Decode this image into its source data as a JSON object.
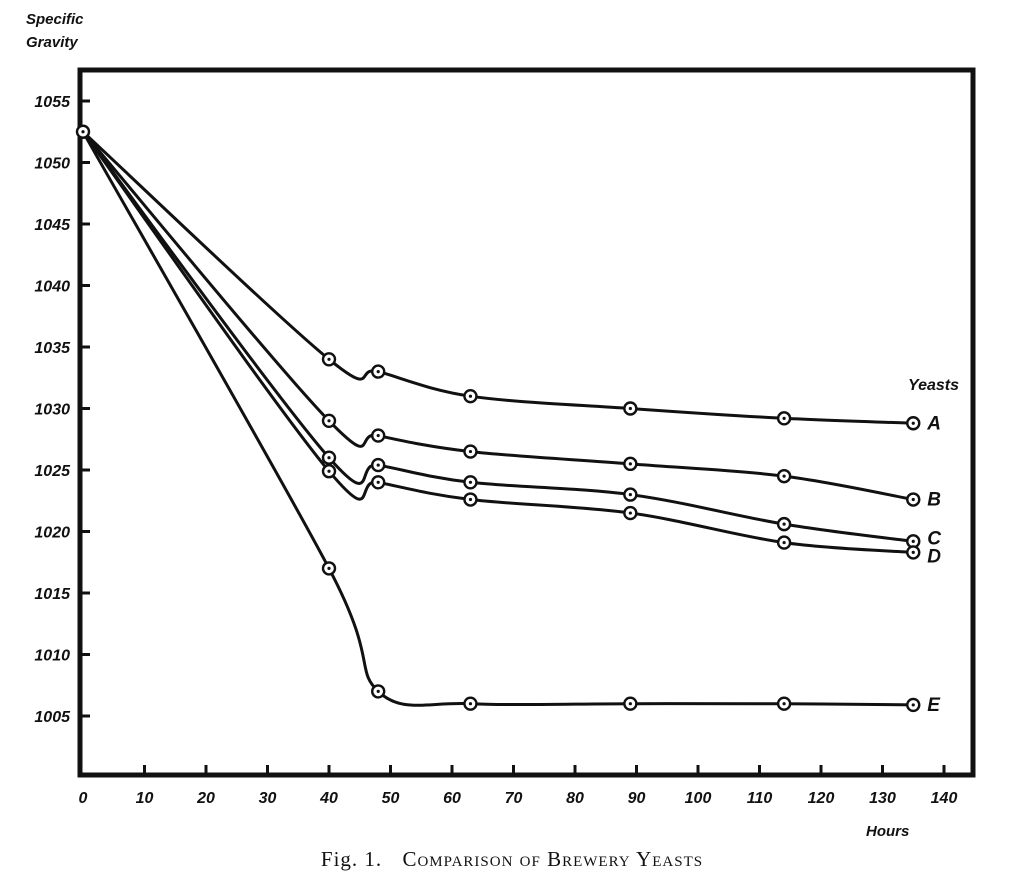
{
  "chart_data": {
    "type": "line",
    "title": "Fig. 1. Comparison of Brewery Yeasts",
    "xlabel": "Hours",
    "ylabel": "Specific Gravity",
    "ylabel_lines": [
      "Specific",
      "Gravity"
    ],
    "xlim": [
      0,
      145
    ],
    "ylim": [
      1000,
      1058
    ],
    "xticks": [
      0,
      10,
      20,
      30,
      40,
      50,
      60,
      70,
      80,
      90,
      100,
      110,
      120,
      130,
      140
    ],
    "yticks": [
      1005,
      1010,
      1015,
      1020,
      1025,
      1030,
      1035,
      1040,
      1045,
      1050,
      1055
    ],
    "legend_title": "Yeasts",
    "grid": false,
    "series": [
      {
        "name": "A",
        "points": [
          [
            0,
            1052.5
          ],
          [
            40,
            1034
          ],
          [
            48,
            1033
          ],
          [
            63,
            1031
          ],
          [
            89,
            1030
          ],
          [
            114,
            1029.2
          ],
          [
            135,
            1028.8
          ]
        ]
      },
      {
        "name": "B",
        "points": [
          [
            0,
            1052.5
          ],
          [
            40,
            1029
          ],
          [
            48,
            1027.8
          ],
          [
            63,
            1026.5
          ],
          [
            89,
            1025.5
          ],
          [
            114,
            1024.5
          ],
          [
            135,
            1022.6
          ]
        ]
      },
      {
        "name": "C",
        "points": [
          [
            0,
            1052.5
          ],
          [
            40,
            1026
          ],
          [
            48,
            1025.4
          ],
          [
            63,
            1024
          ],
          [
            89,
            1023
          ],
          [
            114,
            1020.6
          ],
          [
            135,
            1019.2
          ]
        ]
      },
      {
        "name": "D",
        "points": [
          [
            0,
            1052.5
          ],
          [
            40,
            1024.9
          ],
          [
            48,
            1024
          ],
          [
            63,
            1022.6
          ],
          [
            89,
            1021.5
          ],
          [
            114,
            1019.1
          ],
          [
            135,
            1018.3
          ]
        ]
      },
      {
        "name": "E",
        "points": [
          [
            0,
            1052.5
          ],
          [
            40,
            1017
          ],
          [
            48,
            1007
          ],
          [
            63,
            1006
          ],
          [
            89,
            1006
          ],
          [
            114,
            1006
          ],
          [
            135,
            1005.9
          ]
        ]
      }
    ]
  },
  "caption": {
    "prefix": "Fig. 1.",
    "text": "Comparison of Brewery Yeasts"
  }
}
